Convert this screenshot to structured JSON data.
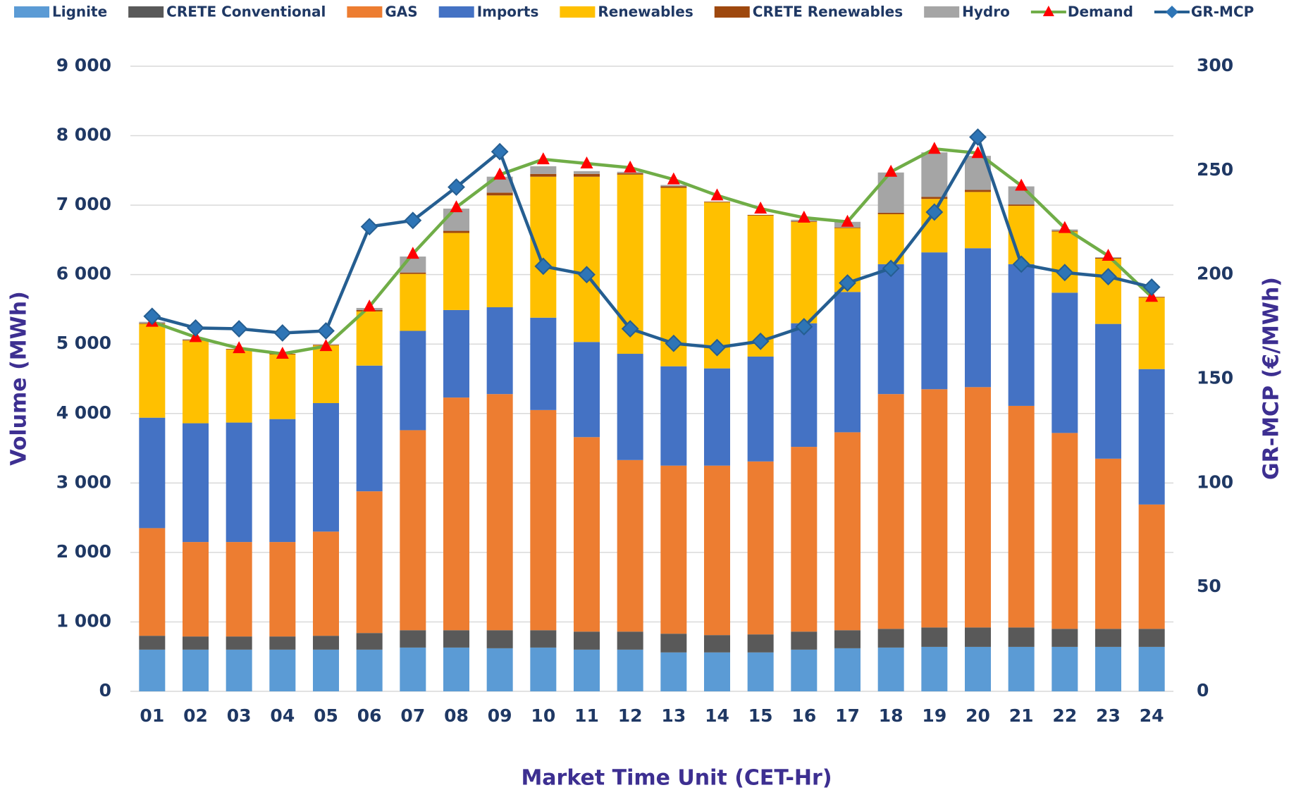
{
  "chart_data": {
    "type": "bar",
    "x_label": "Market Time Unit (CET-Hr)",
    "y_label": "Volume (MWh)",
    "y2_label": "GR-MCP (€/MWh)",
    "stacked": true,
    "categories": [
      "01",
      "02",
      "03",
      "04",
      "05",
      "06",
      "07",
      "08",
      "09",
      "10",
      "11",
      "12",
      "13",
      "14",
      "15",
      "16",
      "17",
      "18",
      "19",
      "20",
      "21",
      "22",
      "23",
      "24"
    ],
    "series": [
      {
        "name": "Lignite",
        "color": "#5b9bd5",
        "values": [
          600,
          600,
          600,
          600,
          600,
          600,
          630,
          630,
          620,
          630,
          600,
          600,
          560,
          560,
          560,
          600,
          620,
          630,
          640,
          640,
          640,
          640,
          640,
          640
        ]
      },
      {
        "name": "CRETE Conventional",
        "color": "#595959",
        "values": [
          200,
          190,
          190,
          190,
          200,
          240,
          250,
          250,
          260,
          250,
          260,
          260,
          270,
          250,
          260,
          260,
          260,
          270,
          280,
          280,
          280,
          260,
          260,
          260
        ]
      },
      {
        "name": "GAS",
        "color": "#ed7d31",
        "values": [
          1550,
          1360,
          1360,
          1360,
          1500,
          2040,
          2880,
          3350,
          3400,
          3170,
          2800,
          2470,
          2420,
          2440,
          2490,
          2660,
          2850,
          3380,
          3430,
          3460,
          3190,
          2820,
          2450,
          1790
        ]
      },
      {
        "name": "Imports",
        "color": "#4472c4",
        "values": [
          1590,
          1710,
          1720,
          1770,
          1850,
          1810,
          1430,
          1260,
          1250,
          1330,
          1370,
          1530,
          1430,
          1400,
          1510,
          1780,
          2020,
          1870,
          1970,
          2000,
          2040,
          2020,
          1940,
          1950
        ]
      },
      {
        "name": "Renewables",
        "color": "#ffc000",
        "values": [
          1350,
          1190,
          1050,
          930,
          830,
          780,
          820,
          1110,
          1610,
          2030,
          2380,
          2580,
          2570,
          2390,
          2030,
          1460,
          920,
          720,
          770,
          810,
          840,
          880,
          940,
          1030
        ]
      },
      {
        "name": "CRETE Renewables",
        "color": "#9e480e",
        "values": [
          10,
          10,
          10,
          10,
          10,
          20,
          20,
          30,
          40,
          40,
          40,
          20,
          20,
          10,
          10,
          10,
          10,
          20,
          30,
          30,
          20,
          10,
          10,
          10
        ]
      },
      {
        "name": "Hydro",
        "color": "#a5a5a5",
        "values": [
          20,
          10,
          0,
          0,
          0,
          30,
          230,
          320,
          230,
          110,
          40,
          20,
          20,
          0,
          0,
          20,
          80,
          580,
          640,
          490,
          260,
          20,
          10,
          0
        ]
      },
      {
        "name": "Demand",
        "type": "line",
        "color": "#70ad47",
        "marker": "triangle",
        "marker_color": "#ff0000",
        "values": [
          5320,
          5100,
          4940,
          4860,
          4970,
          5540,
          6300,
          6970,
          7440,
          7660,
          7600,
          7540,
          7370,
          7140,
          6950,
          6820,
          6760,
          7480,
          7810,
          7750,
          7280,
          6670,
          6270,
          5680
        ]
      },
      {
        "name": "GR-MCP",
        "type": "line",
        "axis": "y2",
        "color": "#255e91",
        "marker": "diamond",
        "marker_color": "#2e75b6",
        "values": [
          180,
          174.4,
          174,
          172,
          173,
          223,
          226,
          242,
          259,
          204,
          200,
          174,
          167,
          165,
          168,
          175,
          196,
          203,
          230,
          266,
          205,
          201,
          199,
          194
        ]
      }
    ],
    "ylim": [
      0,
      9000
    ],
    "yticks": [
      0,
      {
        "value": 1000,
        "label": "1 000"
      },
      {
        "value": 2000,
        "label": "2 000"
      },
      {
        "value": 3000,
        "label": "3 000"
      },
      {
        "value": 4000,
        "label": "4 000"
      },
      {
        "value": 5000,
        "label": "5 000"
      },
      {
        "value": 6000,
        "label": "6 000"
      },
      {
        "value": 7000,
        "label": "7 000"
      },
      {
        "value": 8000,
        "label": "8 000"
      },
      {
        "value": 9000,
        "label": "9 000"
      }
    ],
    "y2lim": [
      0,
      300
    ],
    "y2ticks": [
      0,
      50,
      100,
      150,
      200,
      250,
      300
    ],
    "grid": true
  }
}
